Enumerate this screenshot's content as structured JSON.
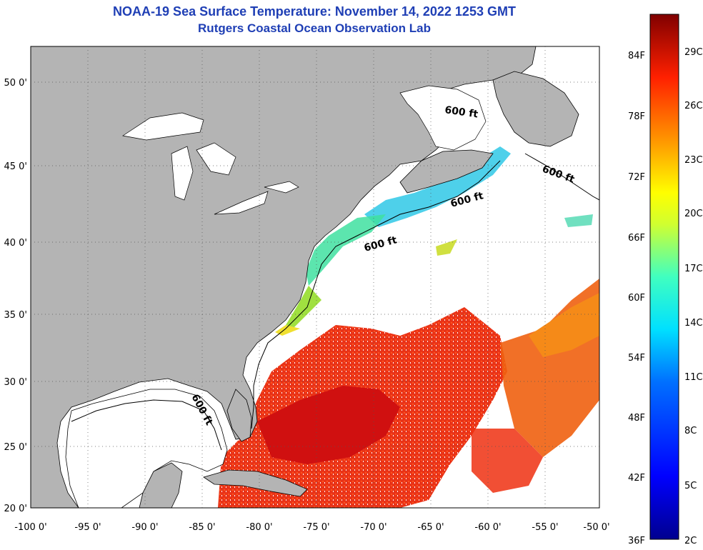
{
  "header": {
    "title": "NOAA-19 Sea Surface Temperature:  November 14, 2022 1253 GMT",
    "subtitle": "Rutgers Coastal Ocean Observation Lab"
  },
  "map": {
    "lon_ticks": [
      "-100 0'",
      "-95 0'",
      "-90 0'",
      "-85 0'",
      "-80 0'",
      "-75 0'",
      "-70 0'",
      "-65 0'",
      "-60 0'",
      "-55 0'",
      "-50 0'"
    ],
    "lat_ticks": [
      "20 0'",
      "25 0'",
      "30 0'",
      "35 0'",
      "40 0'",
      "45 0'",
      "50 0'"
    ],
    "contour_labels": [
      "600 ft",
      "600 ft",
      "600 ft",
      "600 ft",
      "600 ft"
    ],
    "colors": {
      "land": "#b4b4b4",
      "no_data": "#ffffff",
      "coast": "#000000"
    }
  },
  "colorbar": {
    "fahrenheit": [
      "84F",
      "78F",
      "72F",
      "66F",
      "60F",
      "54F",
      "48F",
      "42F",
      "36F"
    ],
    "celsius": [
      "29C",
      "26C",
      "23C",
      "20C",
      "17C",
      "14C",
      "11C",
      "8C",
      "5C",
      "2C"
    ]
  }
}
